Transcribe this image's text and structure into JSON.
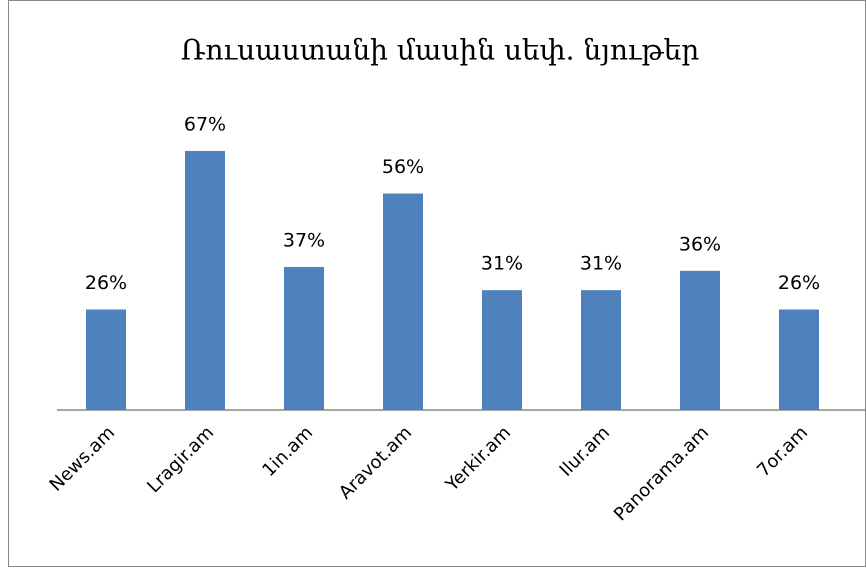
{
  "chart_data": {
    "type": "bar",
    "title": "Ռուսաստանի մասին սեփ. նյութեր",
    "categories": [
      "News.am",
      "Lragir.am",
      "1in.am",
      "Aravot.am",
      "Yerkir.am",
      "Ilur.am",
      "Panorama.am",
      "7or.am"
    ],
    "values": [
      26,
      67,
      37,
      56,
      31,
      31,
      36,
      26
    ],
    "value_labels": [
      "26%",
      "67%",
      "37%",
      "56%",
      "31%",
      "31%",
      "36%",
      "26%"
    ],
    "color": "#4f81bd"
  }
}
